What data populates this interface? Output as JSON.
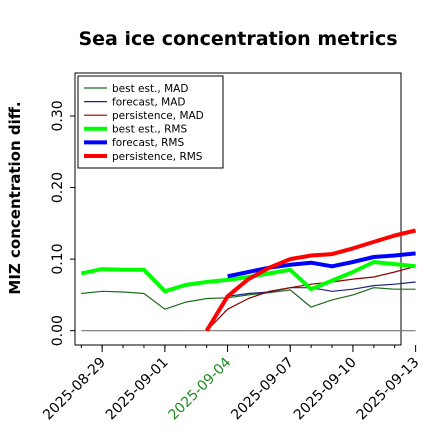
{
  "chart_data": {
    "type": "line",
    "title": "Sea ice concentration metrics",
    "xlabel": "",
    "ylabel": "MIZ concentration diff.",
    "ylim": [
      -0.02,
      0.36
    ],
    "xlim_days": [
      -0.3,
      15.3
    ],
    "y_ticks": [
      0.0,
      0.1,
      0.2,
      0.3
    ],
    "y_tick_labels": [
      "0.00",
      "0.10",
      "0.20",
      "0.30"
    ],
    "x_ticks": [
      {
        "label": "2025-08-29",
        "color": "#000000"
      },
      {
        "label": "2025-09-01",
        "color": "#000000"
      },
      {
        "label": "2025-09-04",
        "color": "#228b22"
      },
      {
        "label": "2025-09-07",
        "color": "#000000"
      },
      {
        "label": "2025-09-10",
        "color": "#000000"
      },
      {
        "label": "2025-09-13",
        "color": "#000000"
      }
    ],
    "grid": false,
    "legend_position": "upper-left",
    "reference_line": {
      "y": 0.0,
      "color": "#777777"
    },
    "series": [
      {
        "name": "best est., MAD",
        "color": "#1e6b1e",
        "width": 1.2,
        "x": [
          "2025-08-28",
          "2025-08-29",
          "2025-08-30",
          "2025-08-31",
          "2025-09-01",
          "2025-09-02",
          "2025-09-03",
          "2025-09-04",
          "2025-09-05",
          "2025-09-06",
          "2025-09-07",
          "2025-09-08",
          "2025-09-09",
          "2025-09-10",
          "2025-09-11",
          "2025-09-12",
          "2025-09-13"
        ],
        "values": [
          0.052,
          0.055,
          0.054,
          0.052,
          0.03,
          0.04,
          0.045,
          0.046,
          0.05,
          0.053,
          0.057,
          0.033,
          0.043,
          0.05,
          0.06,
          0.058,
          0.058
        ]
      },
      {
        "name": "forecast,  MAD",
        "color": "#1a237e",
        "width": 1.2,
        "x": [
          "2025-09-04",
          "2025-09-05",
          "2025-09-06",
          "2025-09-07",
          "2025-09-08",
          "2025-09-09",
          "2025-09-10",
          "2025-09-11",
          "2025-09-12",
          "2025-09-13"
        ],
        "values": [
          0.048,
          0.052,
          0.054,
          0.06,
          0.06,
          0.055,
          0.058,
          0.063,
          0.065,
          0.068
        ]
      },
      {
        "name": "persistence, MAD",
        "color": "#8b0000",
        "width": 1.2,
        "x": [
          "2025-09-03",
          "2025-09-04",
          "2025-09-05",
          "2025-09-06",
          "2025-09-07",
          "2025-09-08",
          "2025-09-09",
          "2025-09-10",
          "2025-09-11",
          "2025-09-12",
          "2025-09-13"
        ],
        "values": [
          0.0,
          0.03,
          0.045,
          0.055,
          0.06,
          0.065,
          0.068,
          0.072,
          0.075,
          0.082,
          0.09
        ]
      },
      {
        "name": "best est., RMS",
        "color": "#00ff00",
        "width": 4,
        "x": [
          "2025-08-28",
          "2025-08-29",
          "2025-08-30",
          "2025-08-31",
          "2025-09-01",
          "2025-09-02",
          "2025-09-03",
          "2025-09-04",
          "2025-09-05",
          "2025-09-06",
          "2025-09-07",
          "2025-09-08",
          "2025-09-09",
          "2025-09-10",
          "2025-09-11",
          "2025-09-12",
          "2025-09-13"
        ],
        "values": [
          0.08,
          0.086,
          0.085,
          0.085,
          0.055,
          0.064,
          0.068,
          0.071,
          0.075,
          0.08,
          0.085,
          0.058,
          0.07,
          0.082,
          0.096,
          0.093,
          0.09
        ]
      },
      {
        "name": "forecast,  RMS",
        "color": "#0000ff",
        "width": 4,
        "x": [
          "2025-09-04",
          "2025-09-05",
          "2025-09-06",
          "2025-09-07",
          "2025-09-08",
          "2025-09-09",
          "2025-09-10",
          "2025-09-11",
          "2025-09-12",
          "2025-09-13"
        ],
        "values": [
          0.076,
          0.082,
          0.088,
          0.092,
          0.095,
          0.09,
          0.096,
          0.103,
          0.105,
          0.108
        ]
      },
      {
        "name": "persistence, RMS",
        "color": "#ff0000",
        "width": 4,
        "x": [
          "2025-09-03",
          "2025-09-04",
          "2025-09-05",
          "2025-09-06",
          "2025-09-07",
          "2025-09-08",
          "2025-09-09",
          "2025-09-10",
          "2025-09-11",
          "2025-09-12",
          "2025-09-13"
        ],
        "values": [
          0.0,
          0.048,
          0.072,
          0.088,
          0.1,
          0.105,
          0.107,
          0.115,
          0.124,
          0.133,
          0.14
        ]
      }
    ]
  }
}
